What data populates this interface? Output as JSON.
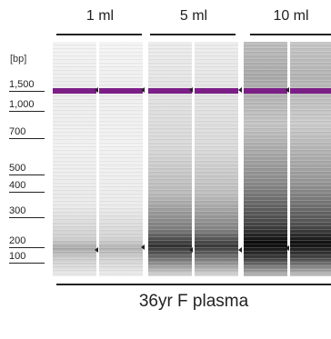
{
  "groups": [
    {
      "label": "1 ml"
    },
    {
      "label": "5 ml"
    },
    {
      "label": "10 ml"
    }
  ],
  "bp_unit": "[bp]",
  "ladder": [
    "1,500",
    "1,000",
    "700",
    "500",
    "400",
    "300",
    "200",
    "100"
  ],
  "sample_label": "36yr F plasma",
  "colors": {
    "marker": "#7b1f86"
  }
}
